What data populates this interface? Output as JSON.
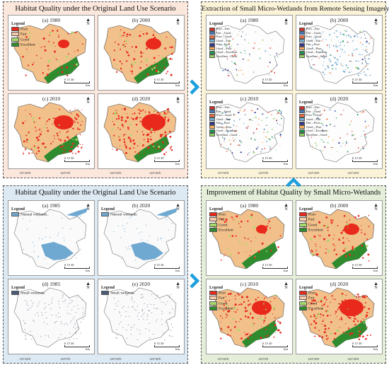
{
  "panels": {
    "top_left": {
      "title": "Habitat Quality under the Original Land Use Scenario",
      "maps": [
        {
          "label": "(a) 1980"
        },
        {
          "label": "(b) 2000"
        },
        {
          "label": "(c) 2010"
        },
        {
          "label": "(d) 2020"
        }
      ],
      "legend_title": "Legend",
      "legend_items": [
        {
          "label": "Poor",
          "color": "#e8291c"
        },
        {
          "label": "Fair",
          "color": "#f8c8a8"
        },
        {
          "label": "Good",
          "color": "#a6d96a"
        },
        {
          "label": "Excellent",
          "color": "#2e8b2e"
        }
      ],
      "scale_ticks": "0    15    30",
      "scale_unit": "km",
      "x_ticks": [
        "119°40'E",
        "120°0'E",
        "120°20'E",
        "120°40'E"
      ],
      "y_ticks": [
        "31°40'N",
        "31°20'N"
      ]
    },
    "top_right": {
      "title": "Extraction of Small Micro-Wetlands from Remote Sensing Imagery",
      "maps": [
        {
          "label": "(a) 1980"
        },
        {
          "label": "(b) 2000"
        },
        {
          "label": "(c) 2010"
        },
        {
          "label": "(d) 2020"
        }
      ],
      "legend_title": "Legend",
      "legend_items": [
        {
          "label": "Poor→Fair",
          "color": "#d73027"
        },
        {
          "label": "Fair→Good",
          "color": "#4575b4"
        },
        {
          "label": "Poor→Good",
          "color": "#f46d43"
        },
        {
          "label": "Good→Fair",
          "color": "#74add1"
        },
        {
          "label": "Fair→Poor",
          "color": "#313695"
        },
        {
          "label": "Good→Poor",
          "color": "#fdae61"
        },
        {
          "label": "Good→Excellent",
          "color": "#1a9850"
        },
        {
          "label": "Excellent→Good",
          "color": "#91cf60"
        }
      ],
      "scale_ticks": "0    15    30",
      "scale_unit": "km",
      "x_ticks": [
        "119°40'E",
        "120°0'E",
        "120°20'E",
        "120°40'E"
      ],
      "y_ticks": [
        "31°40'N",
        "31°20'N"
      ]
    },
    "bottom_left": {
      "title": "Habitat Quality under the Original Land Use Scenario",
      "maps": [
        {
          "label": "(a) 1985"
        },
        {
          "label": "(b) 2020"
        },
        {
          "label": "(d) 1985"
        },
        {
          "label": "(e) 2020"
        }
      ],
      "legend_title": "Legend",
      "legend_natural": {
        "label": "Natural wetlands",
        "color": "#6fa8d0"
      },
      "legend_small": {
        "label": "Small wetlands",
        "color": "#4a5a7a"
      },
      "scale_ticks": "0    15    30",
      "scale_unit": "km",
      "x_ticks": [
        "119°40'E",
        "120°0'E",
        "120°20'E",
        "120°40'E"
      ],
      "y_ticks": [
        "31°40'N",
        "31°20'N"
      ]
    },
    "bottom_right": {
      "title": "Improvement of Habitat Quality by Small Micro-Wetlands",
      "maps": [
        {
          "label": "(a) 1980"
        },
        {
          "label": "(b) 2000"
        },
        {
          "label": "(c) 2010"
        },
        {
          "label": "(d) 2020"
        }
      ],
      "legend_title": "Legend",
      "legend_items": [
        {
          "label": "Poor",
          "color": "#e8291c"
        },
        {
          "label": "Fair",
          "color": "#f8c8a8"
        },
        {
          "label": "Good",
          "color": "#a6d96a"
        },
        {
          "label": "Excellent",
          "color": "#2e8b2e"
        }
      ],
      "scale_ticks": "0    15    30",
      "scale_unit": "km",
      "x_ticks": [
        "119°40'E",
        "120°0'E",
        "120°20'E",
        "120°40'E"
      ],
      "y_ticks": [
        "31°40'N",
        "31°20'N"
      ]
    }
  },
  "colors": {
    "panel_tl_bg": "#fbe7dc",
    "panel_tr_bg": "#fbf3d8",
    "panel_bl_bg": "#dde9f3",
    "panel_br_bg": "#e4eed9",
    "arrow": "#1ea0dc",
    "map_land": "#f2c08a",
    "map_poor": "#e8291c",
    "map_excellent": "#2e8b2e",
    "water": "#6fa8d0"
  }
}
